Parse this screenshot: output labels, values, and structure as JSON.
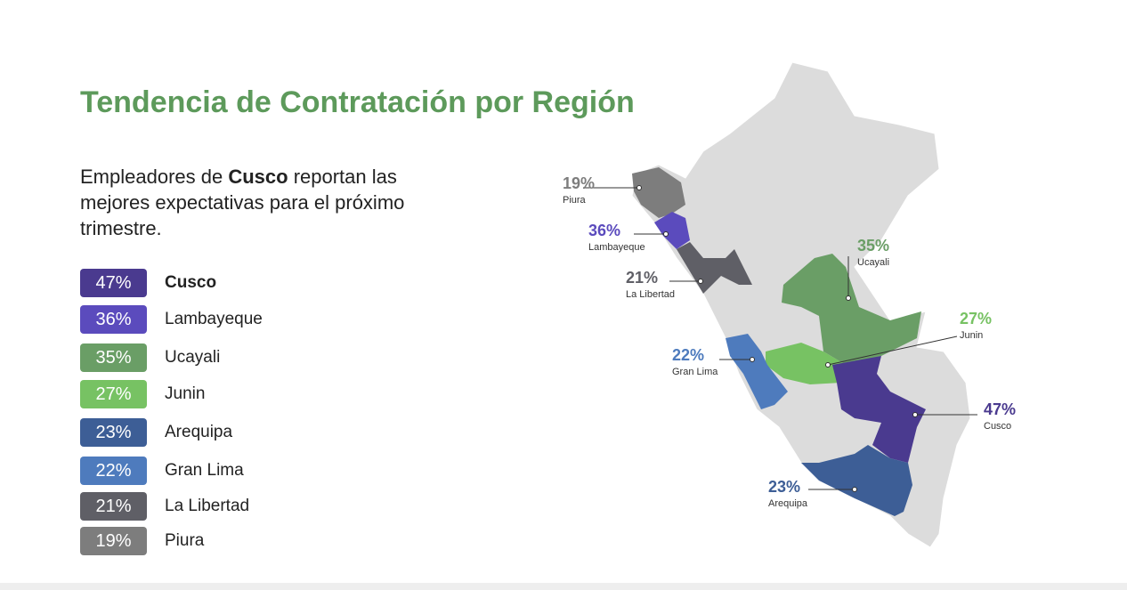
{
  "header": {
    "title": "Tendencia de Contratación por Región"
  },
  "intro": [
    "Empleadores de ",
    "Cusco",
    " reportan las mejores expectativas para el próximo trimestre."
  ],
  "legend": [
    {
      "value": "47%",
      "region": "Cusco"
    },
    {
      "value": "36%",
      "region": "Lambayeque"
    },
    {
      "value": "35%",
      "region": "Ucayali"
    },
    {
      "value": "27%",
      "region": "Junin"
    },
    {
      "value": "23%",
      "region": "Arequipa"
    },
    {
      "value": "22%",
      "region": "Gran Lima"
    },
    {
      "value": "21%",
      "region": "La Libertad"
    },
    {
      "value": "19%",
      "region": "Piura"
    }
  ],
  "map_labels": [
    {
      "value": "19%",
      "region": "Piura"
    },
    {
      "value": "36%",
      "region": "Lambayeque"
    },
    {
      "value": "21%",
      "region": "La Libertad"
    },
    {
      "value": "35%",
      "region": "Ucayali"
    },
    {
      "value": "27%",
      "region": "Junin"
    },
    {
      "value": "22%",
      "region": "Gran Lima"
    },
    {
      "value": "47%",
      "region": "Cusco"
    },
    {
      "value": "23%",
      "region": "Arequipa"
    }
  ]
}
